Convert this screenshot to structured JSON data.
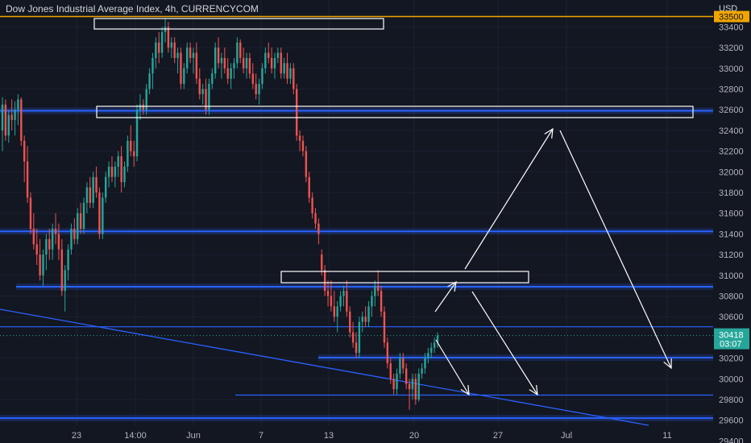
{
  "chart_data": {
    "type": "candlestick",
    "title": "Dow Jones Industrial Average Index, 4h, CURRENCYCOM",
    "currency_label": "USD",
    "price_axis": {
      "ticks": [
        33400,
        33200,
        33000,
        32800,
        32600,
        32400,
        32200,
        32000,
        31800,
        31600,
        31400,
        31200,
        31000,
        30800,
        30600,
        30200,
        30000,
        29800,
        29600,
        29400
      ],
      "range": [
        29380,
        33660
      ]
    },
    "time_axis": {
      "labels": [
        "23",
        "14:00",
        "Jun",
        "7",
        "13",
        "20",
        "27",
        "Jul",
        "11"
      ]
    },
    "last_price": {
      "value": "30418",
      "countdown": "03:07",
      "price": 30418,
      "color": "#26a69a"
    },
    "resistance_marker": {
      "value": "33500",
      "price": 33500,
      "color": "#f0a500"
    },
    "horizontal_levels": [
      {
        "price": 32590,
        "kind": "zone"
      },
      {
        "price": 31425,
        "kind": "zone"
      },
      {
        "price": 30890,
        "kind": "zone"
      },
      {
        "price": 30503,
        "kind": "line"
      },
      {
        "price": 30205,
        "kind": "zone"
      },
      {
        "price": 29843,
        "kind": "line"
      },
      {
        "price": 29620,
        "kind": "zone"
      }
    ],
    "candles": [
      [
        32400,
        32720,
        32200,
        32650
      ],
      [
        32650,
        32700,
        32300,
        32350
      ],
      [
        32350,
        32600,
        32280,
        32550
      ],
      [
        32550,
        32700,
        32400,
        32500
      ],
      [
        32500,
        32680,
        32350,
        32600
      ],
      [
        32600,
        32750,
        32450,
        32700
      ],
      [
        32700,
        32720,
        32250,
        32300
      ],
      [
        32300,
        32350,
        31900,
        32100
      ],
      [
        32100,
        32250,
        31700,
        31750
      ],
      [
        31750,
        31800,
        31400,
        31450
      ],
      [
        31450,
        31600,
        31250,
        31300
      ],
      [
        31300,
        31450,
        31100,
        31200
      ],
      [
        31200,
        31350,
        30950,
        31000
      ],
      [
        31000,
        31250,
        30900,
        31200
      ],
      [
        31200,
        31400,
        31050,
        31350
      ],
      [
        31350,
        31450,
        31150,
        31250
      ],
      [
        31250,
        31500,
        31150,
        31450
      ],
      [
        31450,
        31600,
        31300,
        31400
      ],
      [
        31400,
        31500,
        31150,
        31250
      ],
      [
        31250,
        31350,
        30800,
        30850
      ],
      [
        30850,
        31100,
        30650,
        31050
      ],
      [
        31050,
        31300,
        30950,
        31250
      ],
      [
        31250,
        31500,
        31200,
        31450
      ],
      [
        31450,
        31550,
        31300,
        31350
      ],
      [
        31350,
        31650,
        31300,
        31600
      ],
      [
        31600,
        31700,
        31400,
        31450
      ],
      [
        31450,
        31750,
        31400,
        31700
      ],
      [
        31700,
        31900,
        31600,
        31850
      ],
      [
        31850,
        31950,
        31650,
        31700
      ],
      [
        31700,
        32000,
        31650,
        31950
      ],
      [
        31950,
        32050,
        31750,
        31800
      ],
      [
        31800,
        31850,
        31350,
        31400
      ],
      [
        31400,
        31800,
        31350,
        31750
      ],
      [
        31750,
        32000,
        31700,
        31950
      ],
      [
        31950,
        32100,
        31850,
        32050
      ],
      [
        32050,
        32150,
        31900,
        31950
      ],
      [
        31950,
        32100,
        31850,
        32050
      ],
      [
        32050,
        32200,
        31950,
        32150
      ],
      [
        32150,
        32250,
        31800,
        31900
      ],
      [
        31900,
        32100,
        31850,
        32050
      ],
      [
        32050,
        32350,
        32000,
        32300
      ],
      [
        32300,
        32450,
        32150,
        32200
      ],
      [
        32200,
        32300,
        32050,
        32150
      ],
      [
        32150,
        32650,
        32100,
        32600
      ],
      [
        32600,
        32750,
        32500,
        32650
      ],
      [
        32650,
        32700,
        32550,
        32600
      ],
      [
        32600,
        32850,
        32550,
        32800
      ],
      [
        32800,
        33000,
        32750,
        32950
      ],
      [
        32950,
        33150,
        32800,
        33100
      ],
      [
        33100,
        33300,
        33000,
        33250
      ],
      [
        33250,
        33350,
        33050,
        33150
      ],
      [
        33150,
        33400,
        33100,
        33350
      ],
      [
        33350,
        33480,
        33250,
        33400
      ],
      [
        33400,
        33450,
        33150,
        33200
      ],
      [
        33200,
        33300,
        33100,
        33250
      ],
      [
        33250,
        33300,
        33050,
        33100
      ],
      [
        33100,
        33200,
        32950,
        33150
      ],
      [
        33150,
        33200,
        32800,
        32850
      ],
      [
        32850,
        33050,
        32800,
        33000
      ],
      [
        33000,
        33250,
        32950,
        33200
      ],
      [
        33200,
        33250,
        33050,
        33100
      ],
      [
        33100,
        33200,
        32950,
        33150
      ],
      [
        33150,
        33250,
        32850,
        32900
      ],
      [
        32900,
        33000,
        32700,
        32750
      ],
      [
        32750,
        32850,
        32650,
        32800
      ],
      [
        32800,
        32900,
        32550,
        32600
      ],
      [
        32600,
        32900,
        32550,
        32850
      ],
      [
        32850,
        33000,
        32800,
        32950
      ],
      [
        32950,
        33250,
        32900,
        33200
      ],
      [
        33200,
        33300,
        33000,
        33050
      ],
      [
        33050,
        33150,
        32900,
        33100
      ],
      [
        33100,
        33200,
        32950,
        33000
      ],
      [
        33000,
        33100,
        32850,
        32900
      ],
      [
        32900,
        33050,
        32800,
        33000
      ],
      [
        33000,
        33100,
        32900,
        33050
      ],
      [
        33050,
        33300,
        33000,
        33250
      ],
      [
        33250,
        33280,
        33050,
        33100
      ],
      [
        33100,
        33200,
        32950,
        33000
      ],
      [
        33000,
        33150,
        32900,
        33100
      ],
      [
        33100,
        33150,
        32900,
        32950
      ],
      [
        32950,
        33050,
        32800,
        32850
      ],
      [
        32850,
        32950,
        32700,
        32750
      ],
      [
        32750,
        32900,
        32650,
        32850
      ],
      [
        32850,
        33050,
        32800,
        33000
      ],
      [
        33000,
        33200,
        32950,
        33150
      ],
      [
        33150,
        33250,
        33050,
        33100
      ],
      [
        33100,
        33200,
        32950,
        33000
      ],
      [
        33000,
        33150,
        32900,
        33100
      ],
      [
        33100,
        33200,
        33050,
        33150
      ],
      [
        33150,
        33200,
        32900,
        32950
      ],
      [
        32950,
        33100,
        32900,
        33050
      ],
      [
        33050,
        33150,
        32850,
        32900
      ],
      [
        32900,
        33050,
        32850,
        33000
      ],
      [
        33000,
        33050,
        32750,
        32800
      ],
      [
        32800,
        32850,
        32300,
        32350
      ],
      [
        32350,
        32400,
        32200,
        32300
      ],
      [
        32300,
        32350,
        32150,
        32200
      ],
      [
        32200,
        32250,
        31900,
        31950
      ],
      [
        31950,
        32000,
        31700,
        31750
      ],
      [
        31750,
        31800,
        31550,
        31600
      ],
      [
        31600,
        31650,
        31450,
        31500
      ],
      [
        31500,
        31550,
        31300,
        31400
      ],
      [
        31200,
        31250,
        31000,
        31050
      ],
      [
        31050,
        31100,
        30800,
        30850
      ],
      [
        30850,
        30950,
        30700,
        30800
      ],
      [
        30800,
        30950,
        30650,
        30700
      ],
      [
        30700,
        30850,
        30550,
        30600
      ],
      [
        30600,
        30750,
        30450,
        30700
      ],
      [
        30700,
        30850,
        30650,
        30800
      ],
      [
        30800,
        30900,
        30700,
        30850
      ],
      [
        30850,
        30950,
        30600,
        30650
      ],
      [
        30650,
        30700,
        30400,
        30450
      ],
      [
        30450,
        30550,
        30300,
        30350
      ],
      [
        30350,
        30450,
        30200,
        30250
      ],
      [
        30250,
        30600,
        30200,
        30550
      ],
      [
        30550,
        30650,
        30450,
        30600
      ],
      [
        30600,
        30700,
        30500,
        30550
      ],
      [
        30550,
        30750,
        30500,
        30700
      ],
      [
        30700,
        30850,
        30600,
        30800
      ],
      [
        30800,
        30950,
        30700,
        30900
      ],
      [
        30900,
        31050,
        30800,
        30850
      ],
      [
        30850,
        30900,
        30600,
        30650
      ],
      [
        30650,
        30700,
        30300,
        30350
      ],
      [
        30350,
        30400,
        30100,
        30150
      ],
      [
        30150,
        30200,
        29950,
        30000
      ],
      [
        30000,
        30050,
        29850,
        29900
      ],
      [
        29900,
        30100,
        29850,
        30050
      ],
      [
        30050,
        30250,
        30000,
        30200
      ],
      [
        30200,
        30250,
        30050,
        30100
      ],
      [
        30100,
        30150,
        29900,
        29950
      ],
      [
        29950,
        30000,
        29700,
        29900
      ],
      [
        29900,
        30050,
        29800,
        30000
      ],
      [
        30000,
        30050,
        29750,
        29800
      ],
      [
        29800,
        30100,
        29780,
        30050
      ],
      [
        30050,
        30150,
        30000,
        30100
      ],
      [
        30100,
        30250,
        30050,
        30200
      ],
      [
        30200,
        30300,
        30150,
        30250
      ],
      [
        30250,
        30350,
        30200,
        30300
      ],
      [
        30300,
        30400,
        30250,
        30350
      ],
      [
        30350,
        30450,
        30300,
        30418
      ]
    ]
  }
}
